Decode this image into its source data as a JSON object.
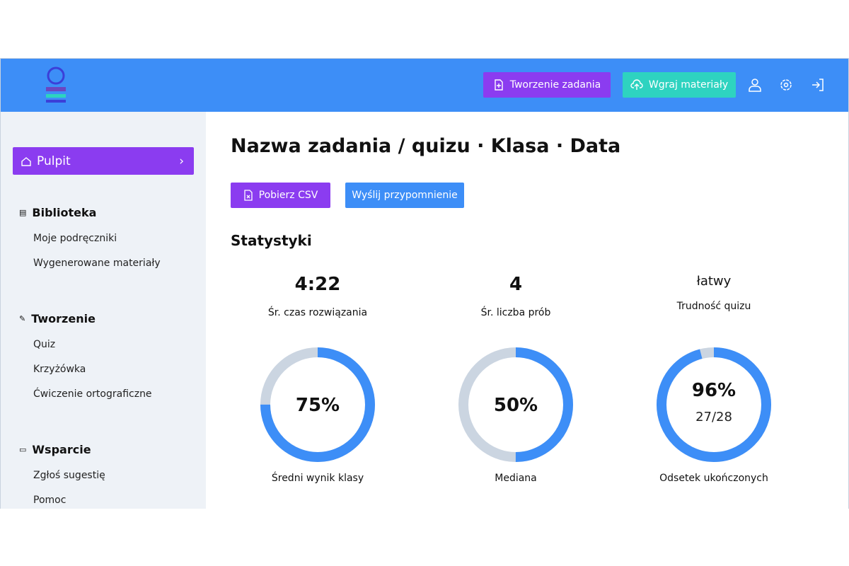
{
  "header": {
    "buttons": [
      "Tworzenie zadania",
      "Wgraj materiały"
    ]
  },
  "sidebar": {
    "active": "Pulpit",
    "sections": [
      {
        "title": "Biblioteka",
        "items": [
          "Moje podręczniki",
          "Wygenerowane materiały"
        ]
      },
      {
        "title": "Tworzenie",
        "items": [
          "Quiz",
          "Krzyżówka",
          "Ćwiczenie ortograficzne"
        ]
      },
      {
        "title": "Wsparcie",
        "items": [
          "Zgłoś sugestię",
          "Pomoc"
        ]
      }
    ]
  },
  "main": {
    "title": "Nazwa zadania / quizu · Klasa · Data",
    "buttons": [
      "Pobierz CSV",
      "Wyślij przypomnienie"
    ],
    "stats_title": "Statystyki",
    "stats": [
      {
        "value": "4:22",
        "label": "Śr. czas rozwiązania"
      },
      {
        "value": 4,
        "label": "Śr. liczba prób"
      },
      {
        "value": "łatwy",
        "label": "Trudność quizu"
      }
    ],
    "donuts": [
      {
        "value": 75,
        "value_label": "75%",
        "label": "Średni wynik klasy"
      },
      {
        "value": 50,
        "value_label": "50%",
        "label": "Mediana"
      },
      {
        "value": 96,
        "value_label": "96%",
        "detail": "27/28",
        "label": "Odsetek ukończonych"
      }
    ]
  }
}
